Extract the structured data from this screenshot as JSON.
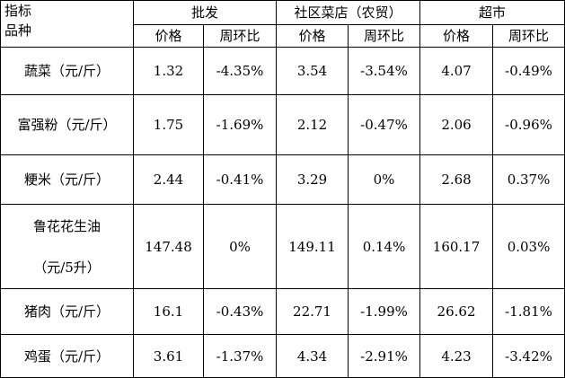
{
  "header": {
    "indicator": "指标",
    "item": "品种",
    "groups": [
      "批发",
      "社区菜店（农贸）",
      "超市"
    ],
    "subheaders": [
      "价格",
      "周环比",
      "价格",
      "周环比",
      "价格",
      "周环比"
    ]
  },
  "rows": [
    {
      "name": [
        "蔬菜（元/斤）"
      ],
      "cells": [
        "1.32",
        "-4.35%",
        "3.54",
        "-3.54%",
        "4.07",
        "-0.49%"
      ]
    },
    {
      "name": [
        "富强粉（元/斤）"
      ],
      "cells": [
        "1.75",
        "-1.69%",
        "2.12",
        "-0.47%",
        "2.06",
        "-0.96%"
      ]
    },
    {
      "name": [
        "粳米（元/斤）"
      ],
      "cells": [
        "2.44",
        "-0.41%",
        "3.29",
        "0%",
        "2.68",
        "0.37%"
      ]
    },
    {
      "name": [
        "鲁花花生油",
        "（元/5升）"
      ],
      "cells": [
        "147.48",
        "0%",
        "149.11",
        "0.14%",
        "160.17",
        "0.03%"
      ]
    },
    {
      "name": [
        "猪肉（元/斤）"
      ],
      "cells": [
        "16.1",
        "-0.43%",
        "22.71",
        "-1.99%",
        "26.62",
        "-1.81%"
      ]
    },
    {
      "name": [
        "鸡蛋（元/斤）"
      ],
      "cells": [
        "3.61",
        "-1.37%",
        "4.34",
        "-2.91%",
        "4.23",
        "-3.42%"
      ]
    }
  ]
}
